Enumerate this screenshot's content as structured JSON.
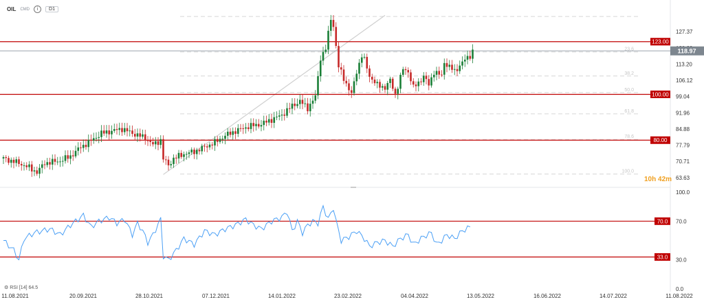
{
  "header": {
    "symbol": "OIL",
    "asset_class": "CMD",
    "info_icon": "i",
    "timeframe": "D1"
  },
  "rsi_label": {
    "name": "RSI",
    "period": "[14]",
    "value": "64.5"
  },
  "countdown": "10h 42m",
  "chart_data": [
    {
      "type": "candlestick",
      "title": "",
      "xlabel": "",
      "ylabel": "",
      "ylim": [
        60,
        137
      ],
      "y_ticks": [
        "127.37",
        "120.29",
        "113.20",
        "106.12",
        "99.04",
        "91.96",
        "84.88",
        "77.79",
        "70.71",
        "63.63"
      ],
      "x_ticks": [
        "11.08.2021",
        "20.09.2021",
        "28.10.2021",
        "07.12.2021",
        "14.01.2022",
        "23.02.2022",
        "04.04.2022",
        "13.05.2022",
        "16.06.2022",
        "14.07.2022",
        "11.08.2022"
      ],
      "current_price": "118.97",
      "current_price_value": 118.97,
      "levels": [
        {
          "label": "123.00",
          "value": 123.0,
          "color": "#c00000"
        },
        {
          "label": "100.00",
          "value": 100.0,
          "color": "#c00000"
        },
        {
          "label": "80.00",
          "value": 80.0,
          "color": "#c00000"
        }
      ],
      "fibonacci": [
        {
          "label": "23.6",
          "value": 118.5
        },
        {
          "label": "38.2",
          "value": 108.0
        },
        {
          "label": "50.0",
          "value": 100.8
        },
        {
          "label": "61.8",
          "value": 91.5
        },
        {
          "label": "78.6",
          "value": 80.3
        },
        {
          "label": "100.0",
          "value": 65.2
        },
        {
          "label": "",
          "value": 134.0
        }
      ],
      "trendline": {
        "from": [
          62,
          65
        ],
        "to": [
          148,
          134.5
        ]
      },
      "colors": {
        "up": "#1a7f37",
        "down": "#c62828",
        "level": "#c00000",
        "fib": "#d6d6d6",
        "price_line": "#9ba3ad",
        "price_tag": "#7d868f"
      },
      "anchors": [
        [
          0,
          72
        ],
        [
          6,
          70
        ],
        [
          10,
          68
        ],
        [
          13,
          66
        ],
        [
          16,
          70
        ],
        [
          22,
          71
        ],
        [
          26,
          73
        ],
        [
          30,
          77
        ],
        [
          33,
          79
        ],
        [
          38,
          83
        ],
        [
          42,
          84
        ],
        [
          46,
          85
        ],
        [
          50,
          83
        ],
        [
          55,
          81
        ],
        [
          58,
          78
        ],
        [
          61,
          80
        ],
        [
          62,
          72
        ],
        [
          64,
          69
        ],
        [
          66,
          72
        ],
        [
          70,
          74
        ],
        [
          74,
          75
        ],
        [
          78,
          77
        ],
        [
          82,
          79
        ],
        [
          86,
          82
        ],
        [
          90,
          84
        ],
        [
          95,
          86
        ],
        [
          100,
          87
        ],
        [
          104,
          89
        ],
        [
          108,
          91
        ],
        [
          112,
          95
        ],
        [
          115,
          97
        ],
        [
          118,
          94
        ],
        [
          121,
          99
        ],
        [
          123,
          116
        ],
        [
          125,
          120
        ],
        [
          127,
          133
        ],
        [
          128,
          130
        ],
        [
          130,
          112
        ],
        [
          132,
          107
        ],
        [
          135,
          100
        ],
        [
          137,
          110
        ],
        [
          139,
          117
        ],
        [
          140,
          115
        ],
        [
          142,
          108
        ],
        [
          145,
          104
        ],
        [
          148,
          103
        ],
        [
          150,
          106
        ],
        [
          152,
          100
        ],
        [
          155,
          111
        ],
        [
          157,
          110
        ],
        [
          159,
          103
        ],
        [
          161,
          105
        ],
        [
          163,
          108
        ],
        [
          165,
          104
        ],
        [
          167,
          110
        ],
        [
          170,
          108
        ],
        [
          171,
          114
        ],
        [
          173,
          112
        ],
        [
          175,
          110
        ],
        [
          178,
          114
        ],
        [
          181,
          117
        ],
        [
          182,
          119
        ]
      ]
    },
    {
      "type": "line",
      "title": "",
      "xlabel": "",
      "ylabel": "",
      "ylim": [
        0,
        100
      ],
      "y_ticks": [
        "100.0",
        "70.0",
        "30.0",
        "0.0"
      ],
      "levels": [
        {
          "label": "70.0",
          "value": 70.0,
          "color": "#c00000"
        },
        {
          "label": "33.0",
          "value": 33.0,
          "color": "#c00000"
        }
      ],
      "series": [
        {
          "color": "#4a9ff5"
        }
      ],
      "anchors": [
        [
          0,
          50
        ],
        [
          4,
          40
        ],
        [
          6,
          30
        ],
        [
          8,
          52
        ],
        [
          12,
          58
        ],
        [
          18,
          62
        ],
        [
          22,
          56
        ],
        [
          26,
          66
        ],
        [
          29,
          72
        ],
        [
          31,
          76
        ],
        [
          34,
          64
        ],
        [
          37,
          70
        ],
        [
          41,
          74
        ],
        [
          44,
          68
        ],
        [
          47,
          72
        ],
        [
          50,
          56
        ],
        [
          52,
          68
        ],
        [
          54,
          60
        ],
        [
          56,
          48
        ],
        [
          58,
          56
        ],
        [
          61,
          72
        ],
        [
          62,
          34
        ],
        [
          64,
          30
        ],
        [
          67,
          40
        ],
        [
          70,
          52
        ],
        [
          74,
          46
        ],
        [
          78,
          60
        ],
        [
          82,
          56
        ],
        [
          86,
          62
        ],
        [
          90,
          66
        ],
        [
          94,
          72
        ],
        [
          97,
          66
        ],
        [
          100,
          62
        ],
        [
          104,
          70
        ],
        [
          108,
          74
        ],
        [
          110,
          80
        ],
        [
          112,
          60
        ],
        [
          114,
          70
        ],
        [
          116,
          58
        ],
        [
          118,
          66
        ],
        [
          120,
          70
        ],
        [
          122,
          68
        ],
        [
          124,
          85
        ],
        [
          126,
          72
        ],
        [
          128,
          84
        ],
        [
          129,
          70
        ],
        [
          131,
          50
        ],
        [
          134,
          54
        ],
        [
          137,
          60
        ],
        [
          140,
          52
        ],
        [
          142,
          44
        ],
        [
          145,
          48
        ],
        [
          148,
          50
        ],
        [
          151,
          44
        ],
        [
          154,
          52
        ],
        [
          157,
          56
        ],
        [
          159,
          46
        ],
        [
          161,
          50
        ],
        [
          163,
          54
        ],
        [
          166,
          58
        ],
        [
          168,
          46
        ],
        [
          170,
          50
        ],
        [
          172,
          56
        ],
        [
          175,
          52
        ],
        [
          178,
          60
        ],
        [
          181,
          64
        ]
      ]
    }
  ]
}
